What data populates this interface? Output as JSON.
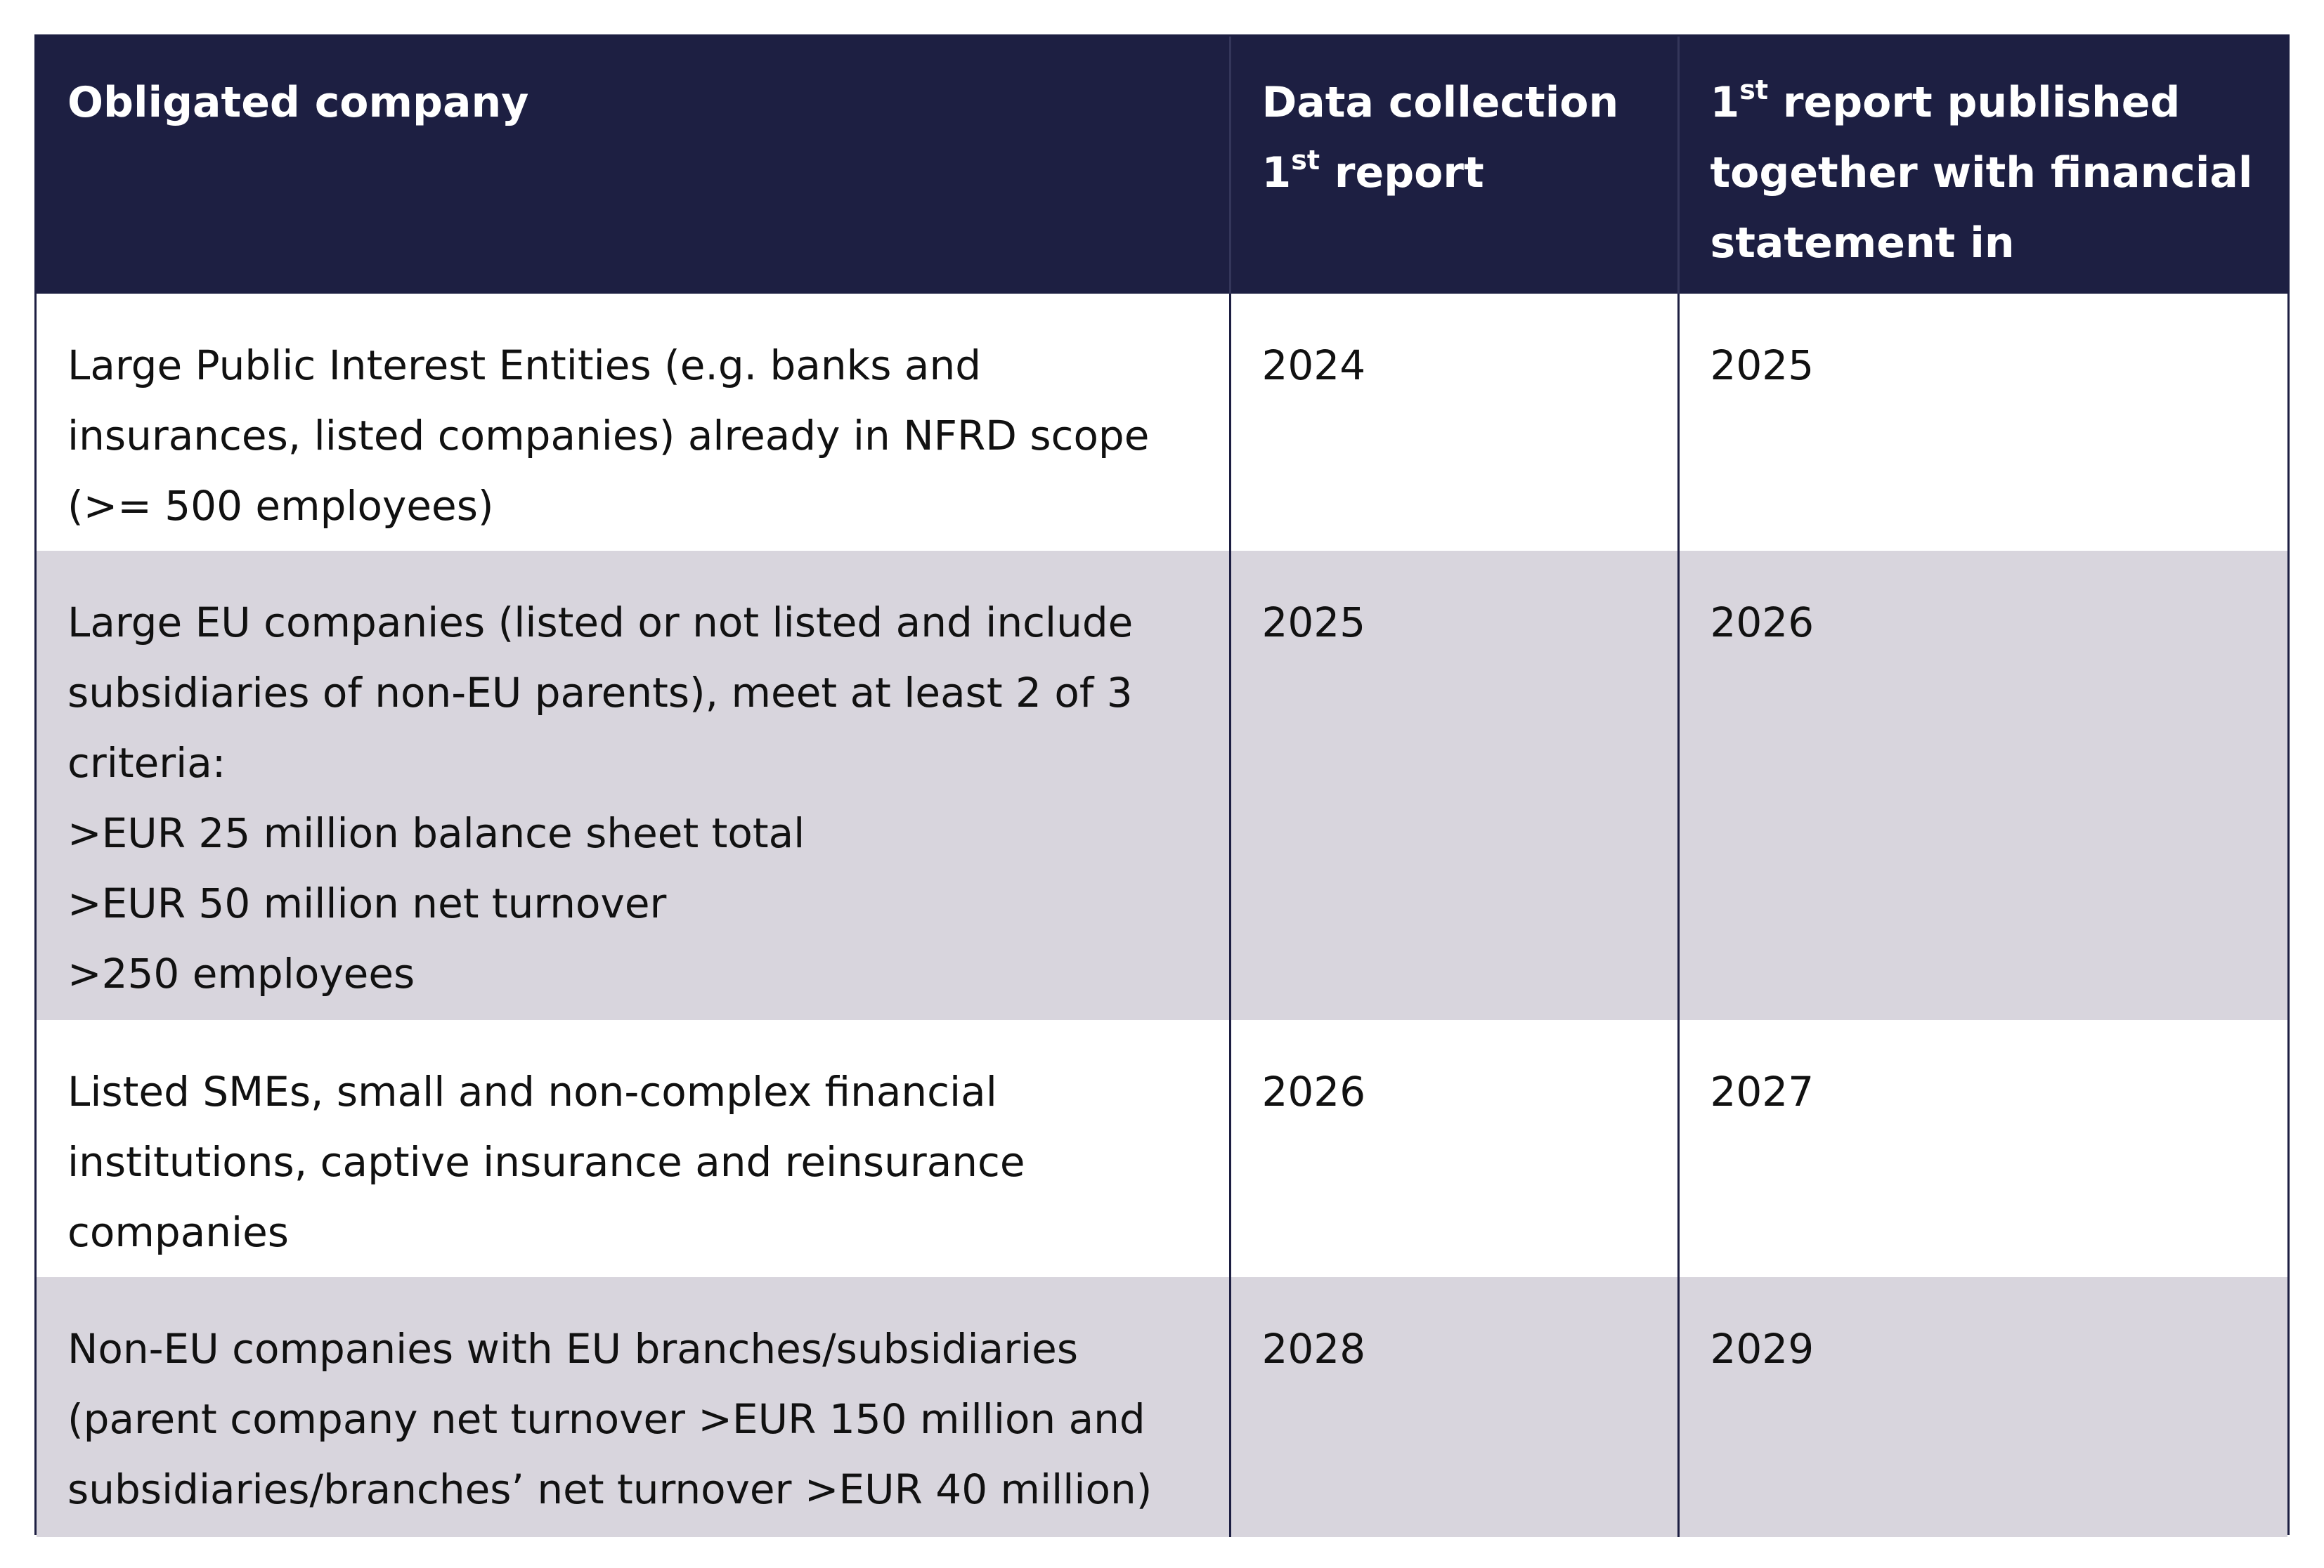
{
  "table": {
    "headers": {
      "company": "Obligated company",
      "data_collection": {
        "line1": "Data collection",
        "ordinal_num": "1",
        "ordinal_sup": "st",
        "rest": " report"
      },
      "first_report": {
        "ordinal_num": "1",
        "ordinal_sup": "st",
        "line1_rest": " report published",
        "line2": "together with financial",
        "line3": "statement in"
      }
    },
    "rows": [
      {
        "company_lines": [
          "Large Public Interest Entities (e.g. banks and",
          "insurances, listed companies) already in NFRD scope",
          "(>= 500 employees)"
        ],
        "data_collection": "2024",
        "first_report": "2025"
      },
      {
        "company_lines": [
          "Large EU companies (listed or not listed and include",
          "subsidiaries of non-EU parents), meet at least 2 of 3",
          "criteria:",
          ">EUR 25 million balance sheet total",
          ">EUR 50 million net turnover",
          ">250 employees"
        ],
        "data_collection": "2025",
        "first_report": "2026"
      },
      {
        "company_lines": [
          "Listed SMEs, small and non-complex financial",
          "institutions, captive insurance and reinsurance",
          "companies"
        ],
        "data_collection": "2026",
        "first_report": "2027"
      },
      {
        "company_lines": [
          "Non-EU companies with EU branches/subsidiaries",
          "(parent company net turnover >EUR 150 million and",
          "subsidiaries/branches’ net turnover >EUR 40 million)"
        ],
        "data_collection": "2028",
        "first_report": "2029"
      }
    ]
  }
}
